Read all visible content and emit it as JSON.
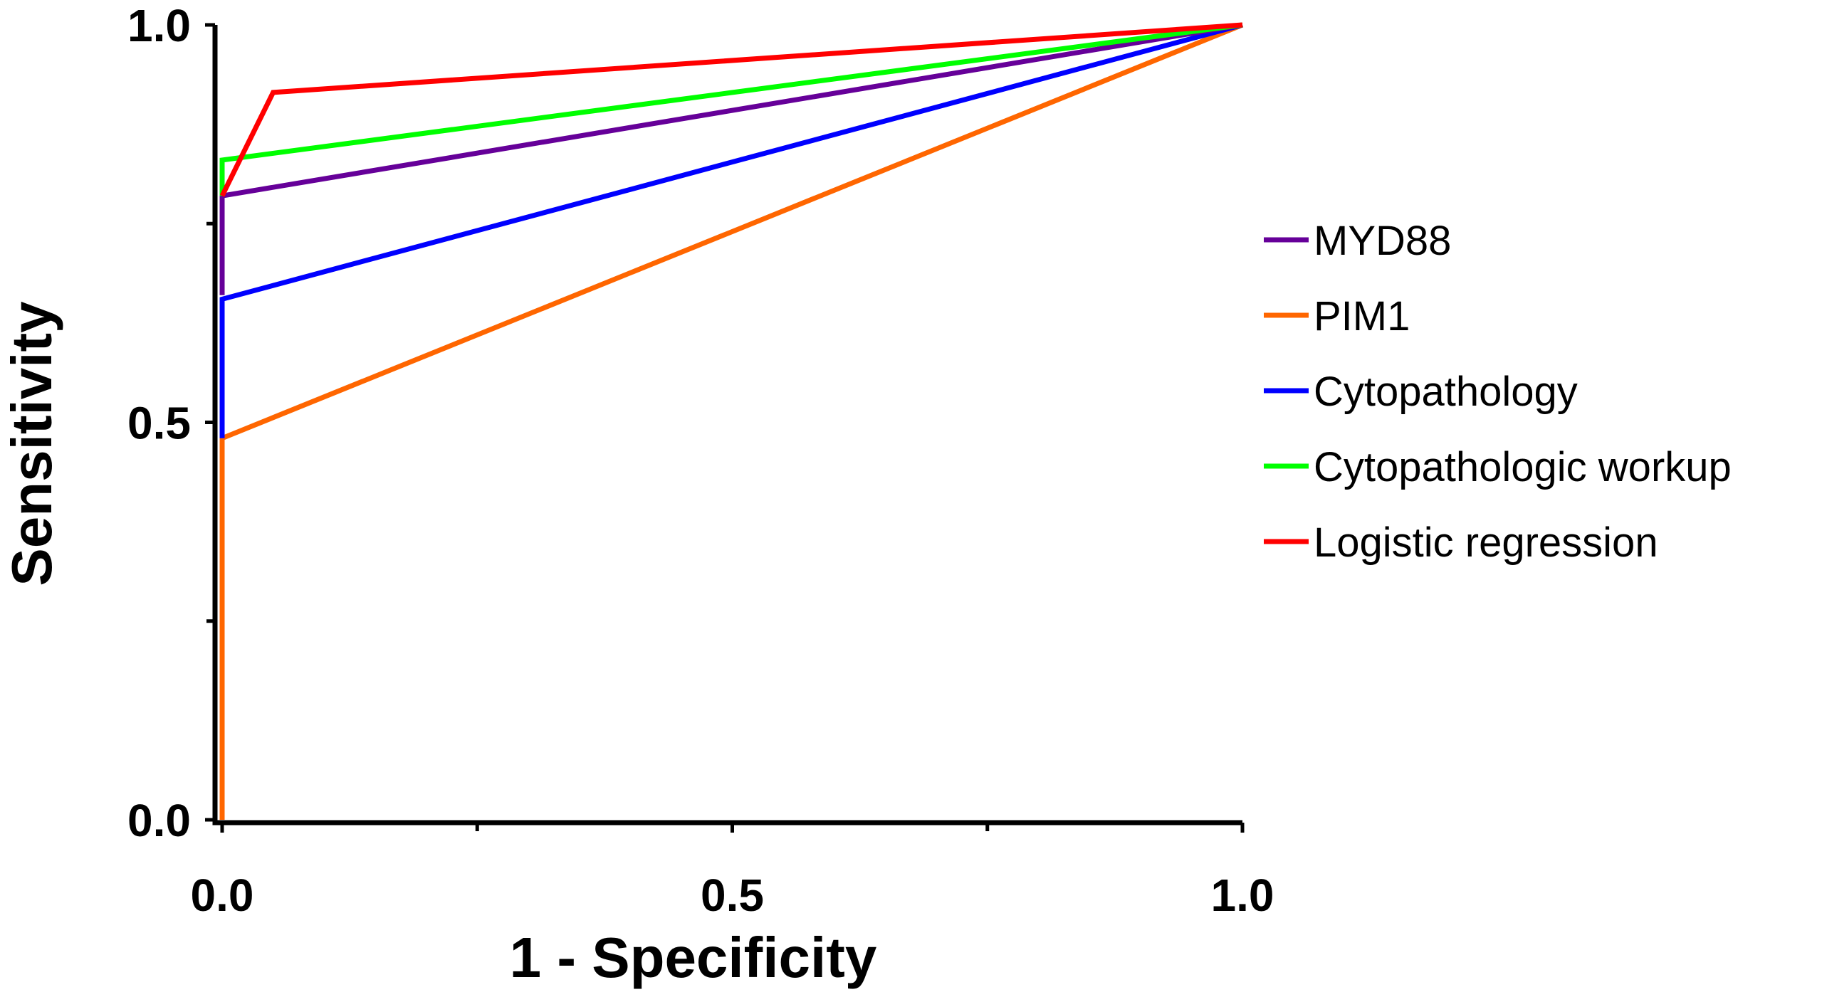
{
  "chart_data": {
    "type": "line",
    "title": "",
    "xlabel": "1 - Specificity",
    "ylabel": "Sensitivity",
    "xlim": [
      0,
      1
    ],
    "ylim": [
      0,
      1
    ],
    "x_ticks": [
      0.0,
      0.5,
      1.0
    ],
    "x_tick_labels": [
      "0.0",
      "0.5",
      "1.0"
    ],
    "x_minor_ticks": [
      0.25,
      0.75
    ],
    "y_ticks": [
      0.0,
      0.5,
      1.0
    ],
    "y_tick_labels": [
      "0.0",
      "0.5",
      "1.0"
    ],
    "y_minor_ticks": [
      0.25,
      0.75
    ],
    "legend_position": "right",
    "series": [
      {
        "key": "pim1",
        "name": "PIM1",
        "color": "#FF6600",
        "x": [
          0,
          0,
          1
        ],
        "y": [
          0,
          0.48,
          1.0
        ]
      },
      {
        "key": "cytopathology",
        "name": "Cytopathology",
        "color": "#0000FF",
        "x": [
          0,
          0,
          0,
          1
        ],
        "y": [
          0.48,
          0.49,
          0.655,
          1.0
        ]
      },
      {
        "key": "myd88",
        "name": "MYD88",
        "color": "#660099",
        "x": [
          0,
          0,
          1
        ],
        "y": [
          0.66,
          0.785,
          1.0
        ]
      },
      {
        "key": "cytopathologic_workup",
        "name": "Cytopathologic workup",
        "color": "#00FF00",
        "x": [
          0,
          0,
          1
        ],
        "y": [
          0.785,
          0.83,
          1.0
        ]
      },
      {
        "key": "logistic_regression",
        "name": "Logistic regression",
        "color": "#FF0000",
        "x": [
          0,
          0.05,
          1
        ],
        "y": [
          0.785,
          0.915,
          1.0
        ]
      }
    ],
    "legend_order": [
      "myd88",
      "pim1",
      "cytopathology",
      "cytopathologic_workup",
      "logistic_regression"
    ]
  }
}
